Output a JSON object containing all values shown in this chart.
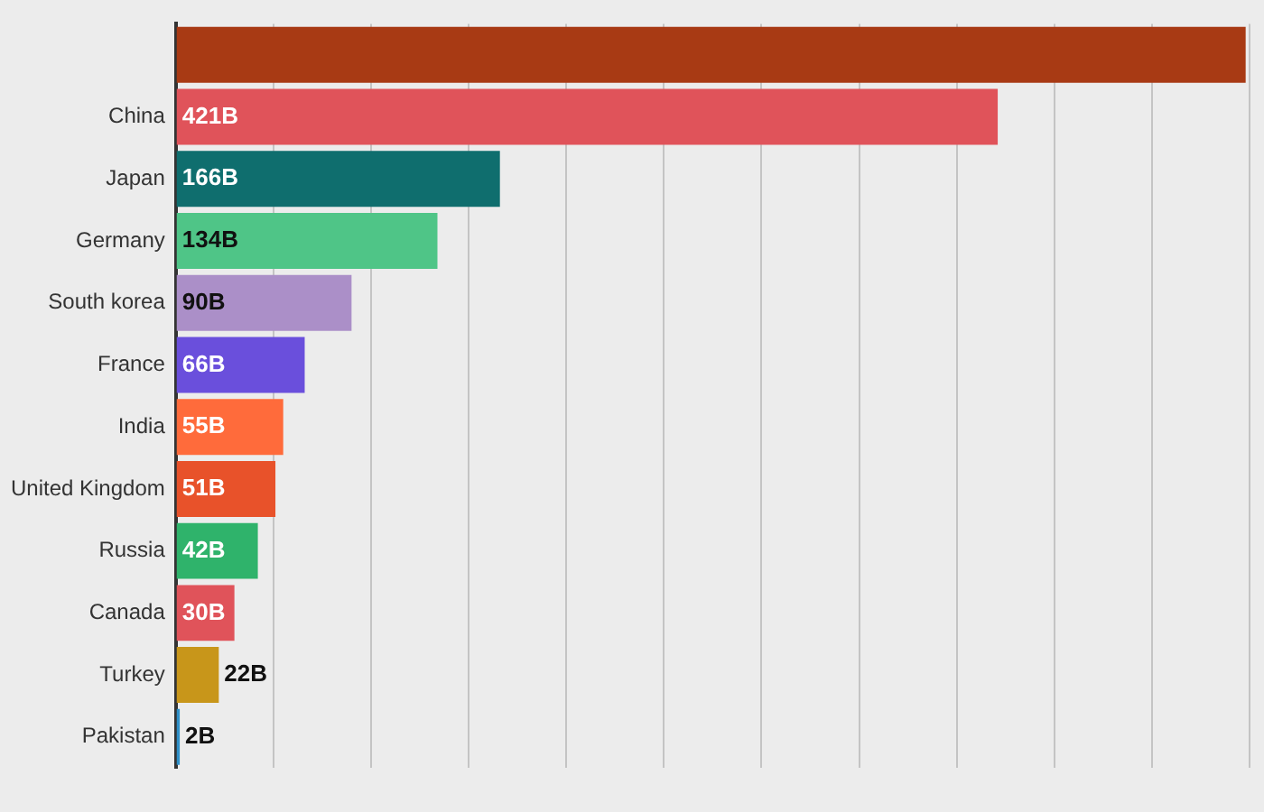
{
  "chart_data": {
    "type": "bar",
    "orientation": "horizontal",
    "categories": [
      null,
      "China",
      "Japan",
      "Germany",
      "South korea",
      "France",
      "India",
      "United Kingdom",
      "Russia",
      "Canada",
      "Turkey",
      "Pakistan"
    ],
    "values": [
      548,
      421,
      166,
      134,
      90,
      66,
      55,
      51,
      42,
      30,
      22,
      2
    ],
    "colors": [
      "#a83a14",
      "#e0535a",
      "#0f6e6e",
      "#4fc587",
      "#ab8fc8",
      "#6a4fdc",
      "#ff6b3b",
      "#e8522a",
      "#2fb36b",
      "#e0535a",
      "#c8961a",
      "#2e8fc8"
    ],
    "value_labels": [
      null,
      "421B",
      "166B",
      "134B",
      "90B",
      "66B",
      "55B",
      "51B",
      "42B",
      "30B",
      "22B",
      "2B"
    ],
    "xlim": [
      0,
      550
    ],
    "xticks": [
      {
        "value": 0,
        "label": null
      },
      {
        "value": 50,
        "label": null
      },
      {
        "value": 100,
        "label": null
      },
      {
        "value": 150,
        "label": null
      },
      {
        "value": 200,
        "label": null
      },
      {
        "value": 250,
        "label": null
      },
      {
        "value": 300,
        "label": null
      },
      {
        "value": 350,
        "label": null
      },
      {
        "value": 400,
        "label": null
      },
      {
        "value": 450,
        "label": null
      },
      {
        "value": 500,
        "label": null
      },
      {
        "value": 550,
        "label": null
      }
    ],
    "grid": "x",
    "legend": false
  }
}
